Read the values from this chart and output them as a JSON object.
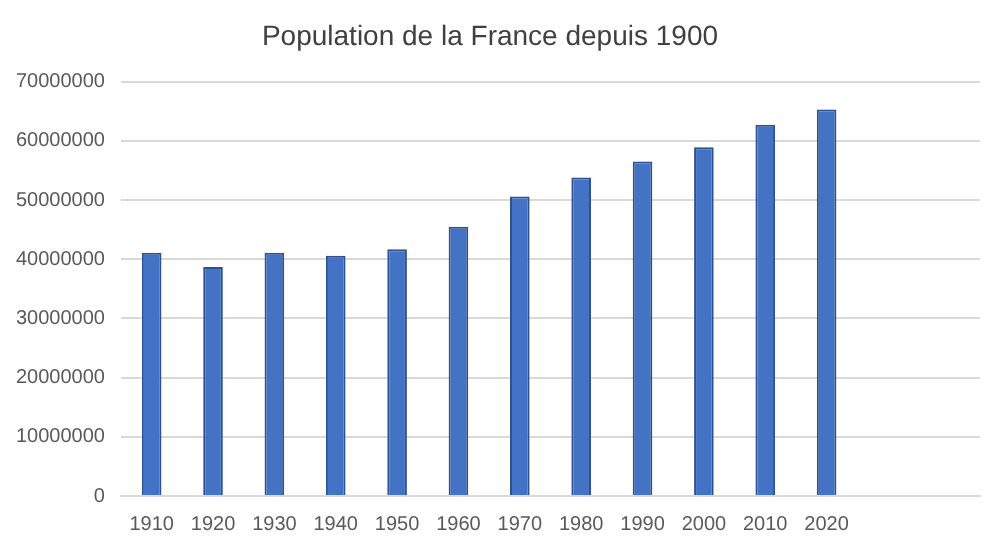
{
  "chart_data": {
    "type": "bar",
    "title": "Population de la France depuis 1900",
    "categories": [
      "1910",
      "1920",
      "1930",
      "1940",
      "1950",
      "1960",
      "1970",
      "1980",
      "1990",
      "2000",
      "2010",
      "2020",
      null,
      null
    ],
    "values": [
      41100000,
      38700000,
      41100000,
      40600000,
      41700000,
      45500000,
      50600000,
      53800000,
      56500000,
      58900000,
      62700000,
      65300000,
      null,
      null
    ],
    "color": "#4472c4",
    "ylim": [
      0,
      70000000
    ],
    "yticks": [
      0,
      10000000,
      20000000,
      30000000,
      40000000,
      50000000,
      60000000,
      70000000
    ],
    "grid": "y",
    "legend": false
  }
}
